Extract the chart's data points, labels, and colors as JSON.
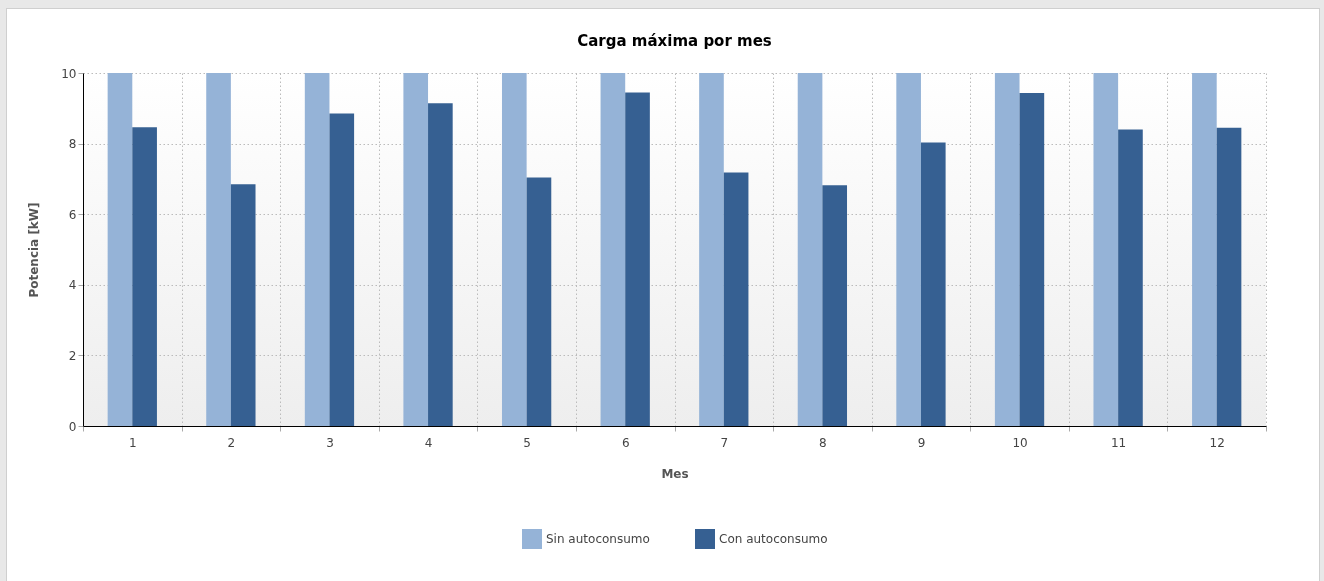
{
  "chart_data": {
    "type": "bar",
    "title": "Carga máxima por mes",
    "xlabel": "Mes",
    "ylabel": "Potencia [kW]",
    "categories": [
      "1",
      "2",
      "3",
      "4",
      "5",
      "6",
      "7",
      "8",
      "9",
      "10",
      "11",
      "12"
    ],
    "series": [
      {
        "name": "Sin autoconsumo",
        "color": "#95b3d7",
        "values": [
          10,
          10,
          10,
          10,
          10,
          10,
          10,
          10,
          10,
          10,
          10,
          10
        ]
      },
      {
        "name": "Con autoconsumo",
        "color": "#366092",
        "values": [
          8.46,
          6.85,
          8.85,
          9.14,
          7.04,
          9.45,
          7.18,
          6.82,
          8.03,
          9.43,
          8.4,
          8.45
        ]
      }
    ],
    "ylim": [
      0,
      10
    ],
    "yticks": [
      0,
      2,
      4,
      6,
      8,
      10
    ],
    "grid": true,
    "legend": "bottom"
  }
}
